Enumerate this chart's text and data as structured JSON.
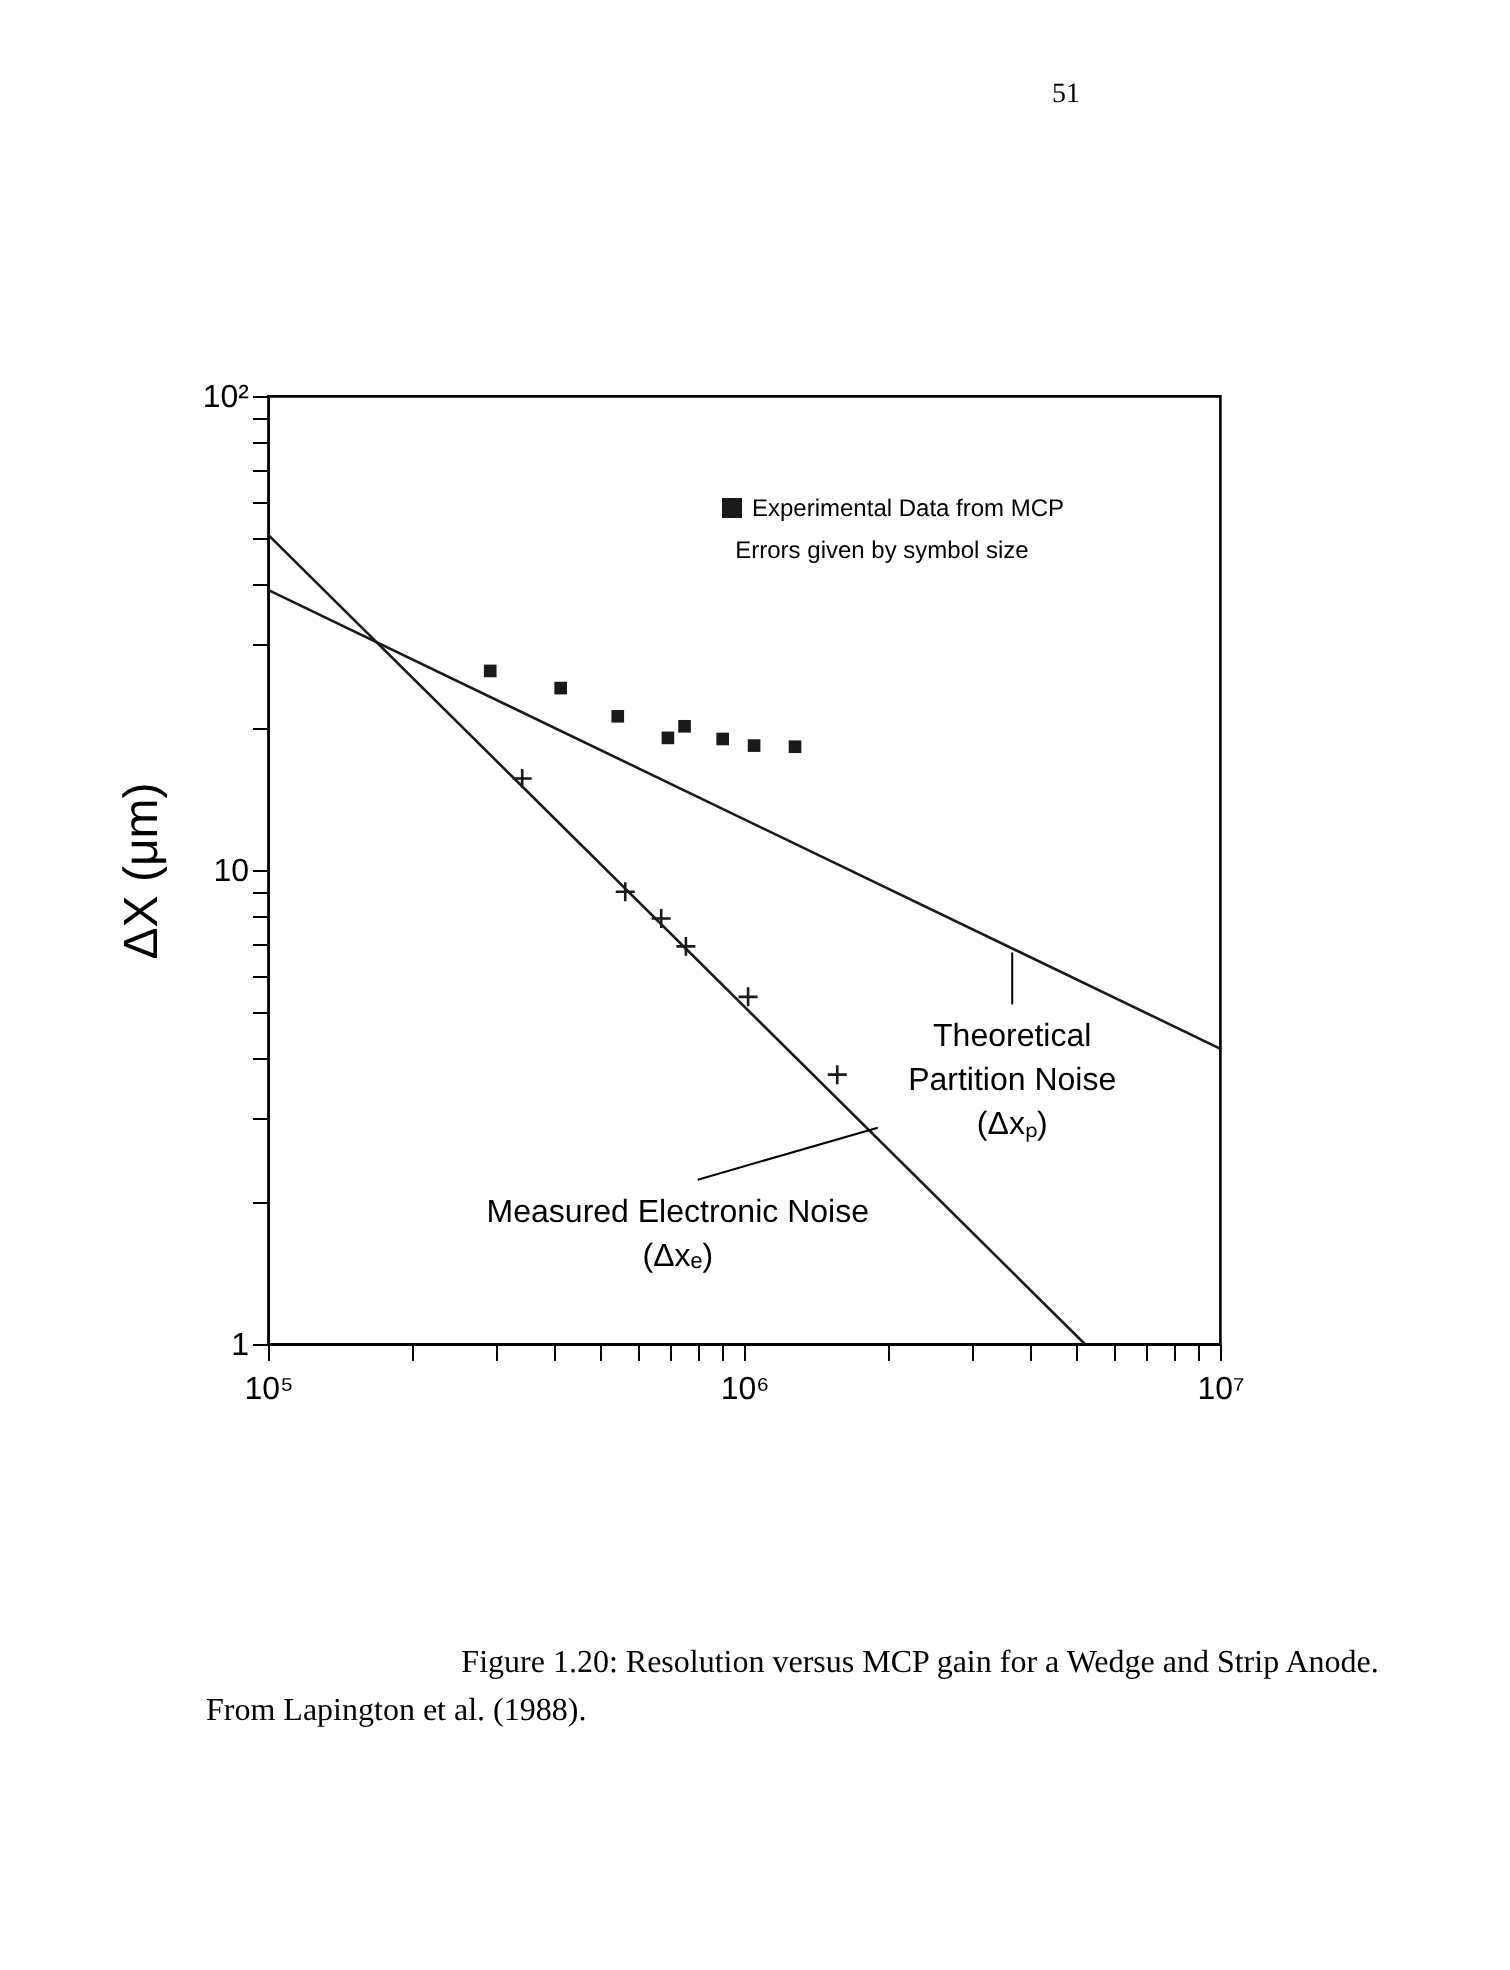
{
  "chart_data": {
    "type": "scatter",
    "ylabel": "ΔX (μm)",
    "xlim": [
      100000,
      10000000
    ],
    "ylim": [
      1,
      100
    ],
    "xticks": [
      {
        "value": 100000,
        "label": "10⁵"
      },
      {
        "value": 200000,
        "label": null
      },
      {
        "value": 300000,
        "label": null
      },
      {
        "value": 400000,
        "label": null
      },
      {
        "value": 500000,
        "label": null
      },
      {
        "value": 600000,
        "label": null
      },
      {
        "value": 700000,
        "label": null
      },
      {
        "value": 800000,
        "label": null
      },
      {
        "value": 900000,
        "label": null
      },
      {
        "value": 1000000,
        "label": "10⁶"
      },
      {
        "value": 2000000,
        "label": null
      },
      {
        "value": 3000000,
        "label": null
      },
      {
        "value": 4000000,
        "label": null
      },
      {
        "value": 5000000,
        "label": null
      },
      {
        "value": 6000000,
        "label": null
      },
      {
        "value": 7000000,
        "label": null
      },
      {
        "value": 8000000,
        "label": null
      },
      {
        "value": 9000000,
        "label": null
      },
      {
        "value": 10000000,
        "label": "10⁷"
      }
    ],
    "yticks": [
      1,
      {
        "value": 2,
        "label": null
      },
      {
        "value": 3,
        "label": null
      },
      {
        "value": 4,
        "label": null
      },
      {
        "value": 5,
        "label": null
      },
      {
        "value": 6,
        "label": null
      },
      {
        "value": 7,
        "label": null
      },
      {
        "value": 8,
        "label": null
      },
      {
        "value": 9,
        "label": null
      },
      10,
      {
        "value": 20,
        "label": null
      },
      {
        "value": 30,
        "label": null
      },
      {
        "value": 40,
        "label": null
      },
      {
        "value": 50,
        "label": null
      },
      {
        "value": 60,
        "label": null
      },
      {
        "value": 70,
        "label": null
      },
      {
        "value": 80,
        "label": null
      },
      {
        "value": 90,
        "label": null
      },
      {
        "value": 100,
        "label": "10²"
      }
    ],
    "log": "xy",
    "grid": false,
    "legend": "top right",
    "series": [
      {
        "name": "Experimental Data from MCP",
        "color": "#1a1a1a",
        "marker": "square",
        "x": [
          293000,
          412000,
          543000,
          692000,
          750000,
          902000,
          1050000,
          1280000
        ],
        "values": [
          26.3,
          24.2,
          21.1,
          19.0,
          20.1,
          18.9,
          18.3,
          18.2
        ]
      },
      {
        "color": "#1a1a1a",
        "marker": "cross",
        "x": [
          342000,
          563000,
          670000,
          755000,
          1020000,
          1570000
        ],
        "values": [
          15.6,
          9.0,
          7.9,
          6.9,
          5.4,
          3.7
        ]
      },
      {
        "type": "line",
        "color": "#1a1a1a",
        "line_style": "solid",
        "x": [
          100000,
          5200000
        ],
        "values": [
          51,
          1
        ]
      },
      {
        "type": "line",
        "color": "#1a1a1a",
        "line_style": "solid",
        "x": [
          100000,
          10000000
        ],
        "values": [
          39,
          4.2
        ]
      }
    ],
    "annotations": [
      "51",
      "Errors given by symbol size",
      {
        "text": "Theoretical\nPartition Noise\n(Δxₚ)",
        "x": 3660000,
        "y": 6.7
      },
      {
        "text": "Measured Electronic Noise\n(Δxₑ)",
        "x": 1910000,
        "y": 2.86
      },
      "Figure 1.20: Resolution versus MCP gain for a Wedge and Strip Anode.",
      "From Lapington et al. (1988)."
    ]
  }
}
